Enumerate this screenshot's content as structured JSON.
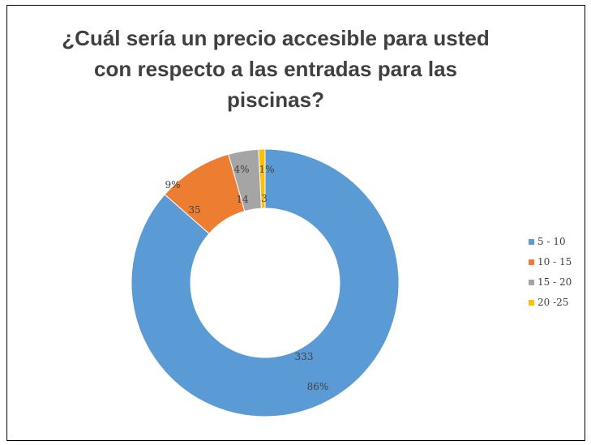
{
  "chart_data": {
    "type": "pie",
    "subtype": "donut",
    "title": "¿Cuál sería un precio accesible para usted con respecto a las entradas para las piscinas?",
    "categories": [
      "5 - 10",
      "10 - 15",
      "15 - 20",
      "20 -25"
    ],
    "values": [
      333,
      35,
      14,
      3
    ],
    "percent_labels": [
      "86%",
      "9%",
      "4%",
      "1%"
    ],
    "colors": [
      "#5B9BD5",
      "#ED7D31",
      "#A5A5A5",
      "#FFC000"
    ],
    "legend_position": "right"
  }
}
